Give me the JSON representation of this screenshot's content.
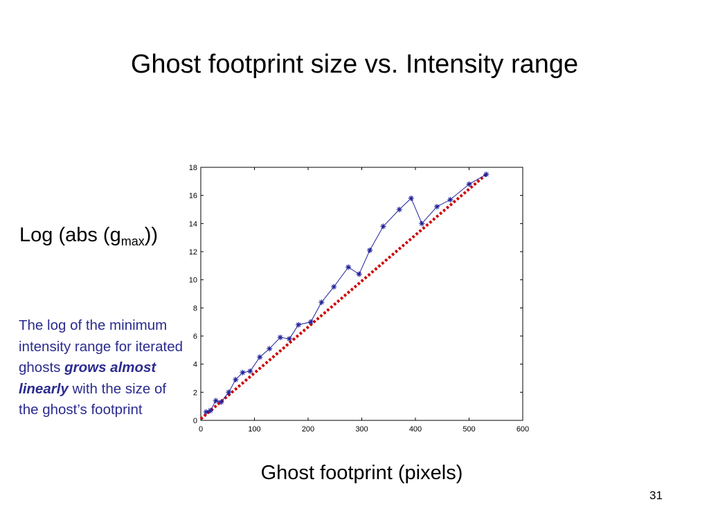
{
  "slide": {
    "title": "Ghost footprint size vs. Intensity range",
    "page_number": "31"
  },
  "ylabel": {
    "main": "Log (abs (g",
    "sub": "max",
    "close": "))"
  },
  "annotation": {
    "part1": "The log of the minimum intensity range for iterated ghosts ",
    "emphasis": "grows almost linearly",
    "part2": " with the size of the ghost’s footprint"
  },
  "colors": {
    "series": "#1f1f9a",
    "trend": "#cc0000",
    "annotation": "#2b2b8f"
  },
  "chart_data": {
    "type": "line",
    "xlabel": "Ghost footprint (pixels)",
    "ylabel": "Log (abs (gmax))",
    "xlim": [
      0,
      600
    ],
    "ylim": [
      0,
      18
    ],
    "xticks": [
      0,
      100,
      200,
      300,
      400,
      500,
      600
    ],
    "yticks": [
      0,
      2,
      4,
      6,
      8,
      10,
      12,
      14,
      16,
      18
    ],
    "grid": false,
    "series": [
      {
        "marker": "asterisk",
        "line": "solid",
        "x": [
          10,
          18,
          28,
          38,
          52,
          65,
          78,
          92,
          110,
          128,
          148,
          165,
          182,
          205,
          225,
          248,
          275,
          295,
          315,
          340,
          370,
          392,
          412,
          440,
          465,
          500,
          532
        ],
        "y": [
          0.6,
          0.7,
          1.4,
          1.3,
          2.0,
          2.9,
          3.4,
          3.5,
          4.5,
          5.1,
          5.9,
          5.8,
          6.8,
          7.0,
          8.4,
          9.5,
          10.9,
          10.4,
          12.1,
          13.8,
          15.0,
          15.8,
          14.0,
          15.2,
          15.7,
          16.8,
          17.5
        ]
      },
      {
        "marker": "none",
        "line": "dotted",
        "x": [
          0,
          532
        ],
        "y": [
          0.1,
          17.5
        ]
      }
    ]
  }
}
